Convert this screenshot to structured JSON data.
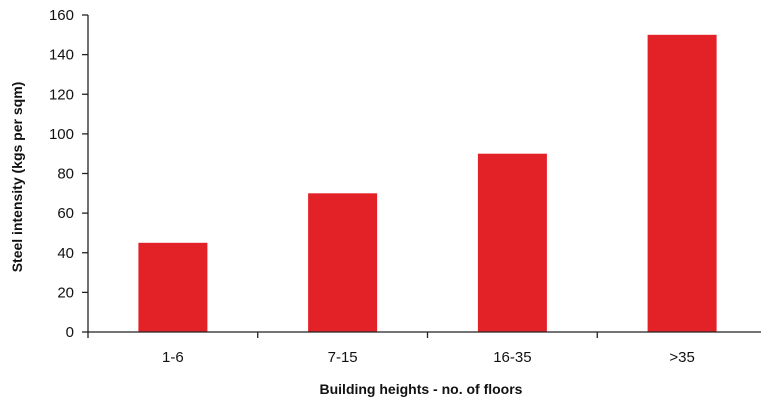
{
  "chart_data": {
    "type": "bar",
    "categories": [
      "1-6",
      "7-15",
      "16-35",
      ">35"
    ],
    "values": [
      45,
      70,
      90,
      150
    ],
    "title": "",
    "xlabel": "Building heights - no. of floors",
    "ylabel": "Steel intensity (kgs per sqm)",
    "ylim": [
      0,
      160
    ],
    "yticks": [
      0,
      20,
      40,
      60,
      80,
      100,
      120,
      140,
      160
    ],
    "grid": false,
    "legend": "none",
    "bar_color": "#e32228",
    "axis_color": "#222222"
  }
}
